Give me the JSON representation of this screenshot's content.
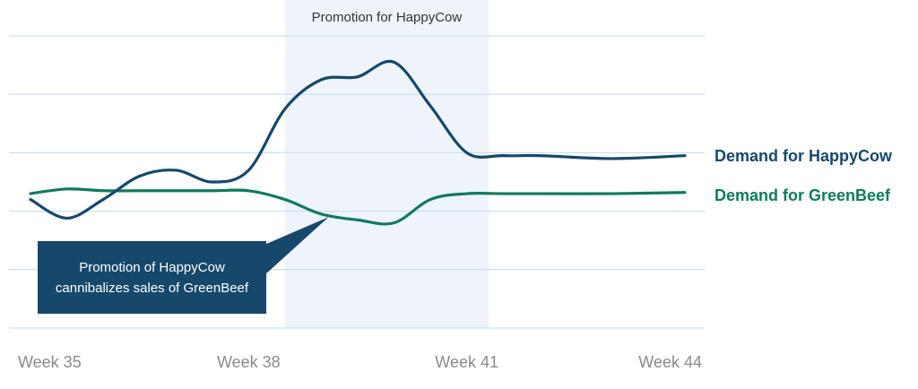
{
  "chart_data": {
    "type": "line",
    "title": "",
    "xlabel": "",
    "ylabel": "",
    "x_tick_labels": [
      "Week 35",
      "Week 38",
      "Week 41",
      "Week 44"
    ],
    "x_tick_values": [
      35,
      38,
      41,
      44
    ],
    "xlim": [
      35,
      44
    ],
    "ylim": [
      0,
      5
    ],
    "grid": true,
    "shaded_region": {
      "label": "Promotion for HappyCow",
      "x_start": 38.5,
      "x_end": 41.3,
      "color": "#eef4fa"
    },
    "series": [
      {
        "name": "Demand for HappyCow",
        "color": "#16486b",
        "x": [
          35,
          35.5,
          36,
          36.5,
          37,
          37.5,
          38,
          38.5,
          39,
          39.5,
          40,
          40.5,
          41,
          41.5,
          42,
          43,
          44
        ],
        "y": [
          2.2,
          1.88,
          2.2,
          2.6,
          2.7,
          2.5,
          2.7,
          3.75,
          4.25,
          4.3,
          4.55,
          3.8,
          3.0,
          2.95,
          2.95,
          2.9,
          2.95
        ]
      },
      {
        "name": "Demand for GreenBeef",
        "color": "#107a5e",
        "x": [
          35,
          35.5,
          36,
          36.5,
          37,
          37.5,
          38,
          38.5,
          39,
          39.5,
          40,
          40.5,
          41,
          41.5,
          42,
          43,
          44
        ],
        "y": [
          2.3,
          2.38,
          2.35,
          2.35,
          2.35,
          2.35,
          2.35,
          2.2,
          1.95,
          1.85,
          1.8,
          2.2,
          2.3,
          2.3,
          2.3,
          2.3,
          2.32
        ]
      }
    ],
    "annotation": {
      "text_lines": [
        "Promotion of HappyCow",
        "cannibalizes sales of GreenBeef"
      ],
      "background": "#16486b",
      "pointer_to": {
        "x": 39.1,
        "y": 1.9
      }
    }
  }
}
